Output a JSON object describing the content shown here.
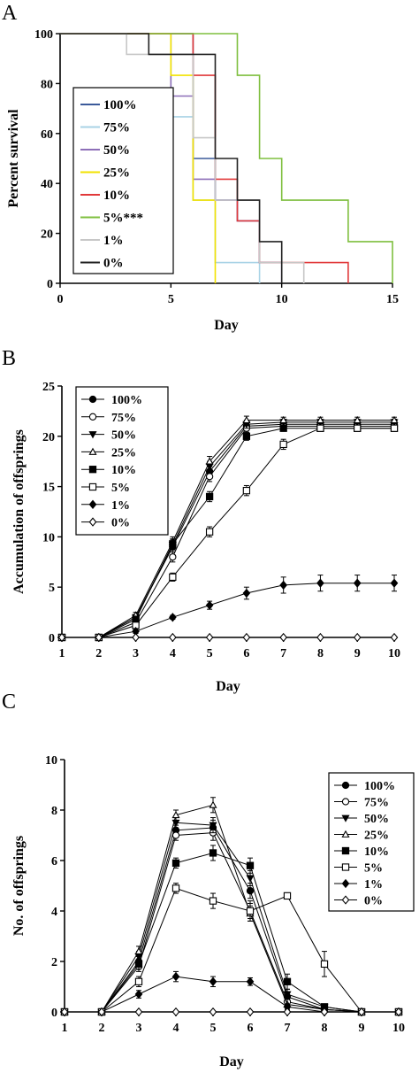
{
  "chart_data": [
    {
      "panel": "A",
      "type": "line",
      "step": true,
      "xlabel": "Day",
      "ylabel": "Percent survival",
      "xlim": [
        0,
        15
      ],
      "ylim": [
        0,
        100
      ],
      "xticks": [
        "0",
        "5",
        "10",
        "15"
      ],
      "yticks": [
        "0",
        "20",
        "40",
        "60",
        "80",
        "100"
      ],
      "legend_position": "left",
      "series": [
        {
          "name": "100%",
          "color": "#3b5a9a",
          "x": [
            0,
            6,
            6,
            7,
            7,
            8,
            8,
            9,
            9,
            10
          ],
          "y": [
            100,
            100,
            50,
            50,
            33.3,
            33.3,
            25,
            25,
            8.3,
            8.3
          ]
        },
        {
          "name": "75%",
          "color": "#a9d3e6",
          "x": [
            0,
            5,
            5,
            6,
            6,
            7,
            7,
            9,
            9
          ],
          "y": [
            100,
            100,
            66.7,
            66.7,
            33.3,
            33.3,
            8.3,
            8.3,
            0
          ]
        },
        {
          "name": "50%",
          "color": "#8d6fb8",
          "x": [
            0,
            5,
            5,
            6,
            6,
            7,
            7,
            8,
            8,
            9,
            9,
            10,
            10
          ],
          "y": [
            100,
            100,
            75,
            75,
            41.7,
            41.7,
            33.3,
            33.3,
            25,
            25,
            8.3,
            8.3,
            0
          ]
        },
        {
          "name": "25%",
          "color": "#f2e200",
          "x": [
            0,
            5,
            5,
            6,
            6,
            7,
            7
          ],
          "y": [
            100,
            100,
            83.3,
            83.3,
            33.3,
            33.3,
            0
          ]
        },
        {
          "name": "10%",
          "color": "#e1393a",
          "x": [
            0,
            6,
            6,
            7,
            7,
            8,
            8,
            9,
            9,
            13,
            13
          ],
          "y": [
            100,
            100,
            83.3,
            83.3,
            41.7,
            41.7,
            25,
            25,
            8.3,
            8.3,
            0
          ]
        },
        {
          "name": "5%***",
          "color": "#7fbf3f",
          "x": [
            0,
            8,
            8,
            9,
            9,
            10,
            10,
            13,
            13,
            15,
            15
          ],
          "y": [
            100,
            100,
            83.3,
            83.3,
            50,
            50,
            33.3,
            33.3,
            16.7,
            16.7,
            0
          ]
        },
        {
          "name": "1%",
          "color": "#c7c7c7",
          "x": [
            0,
            3,
            3,
            6,
            6,
            7,
            7,
            9,
            9,
            11,
            11
          ],
          "y": [
            100,
            100,
            91.7,
            91.7,
            58.3,
            58.3,
            33.3,
            33.3,
            8.3,
            8.3,
            0
          ]
        },
        {
          "name": "0%",
          "color": "#222222",
          "x": [
            0,
            4,
            4,
            7,
            7,
            8,
            8,
            9,
            9,
            10,
            10
          ],
          "y": [
            100,
            100,
            91.7,
            91.7,
            50,
            50,
            33.3,
            33.3,
            16.7,
            16.7,
            0
          ]
        }
      ]
    },
    {
      "panel": "B",
      "type": "line",
      "xlabel": "Day",
      "ylabel": "Accumulation of offsprings",
      "xlim": [
        1,
        10
      ],
      "ylim": [
        0,
        25
      ],
      "xticks": [
        "1",
        "2",
        "3",
        "4",
        "5",
        "6",
        "7",
        "8",
        "9",
        "10"
      ],
      "yticks": [
        "0",
        "5",
        "10",
        "15",
        "20",
        "25"
      ],
      "legend_position": "top-left",
      "categories": [
        1,
        2,
        3,
        4,
        5,
        6,
        7,
        8,
        9,
        10
      ],
      "series": [
        {
          "name": "100%",
          "marker": "circle-filled",
          "values": [
            0,
            0,
            2.0,
            9.0,
            16.5,
            21.0,
            21.2,
            21.2,
            21.2,
            21.2
          ],
          "error": [
            0,
            0,
            0.3,
            0.5,
            0.5,
            0.4,
            0.3,
            0.3,
            0.3,
            0.3
          ]
        },
        {
          "name": "75%",
          "marker": "circle-open",
          "values": [
            0,
            0,
            1.5,
            8.0,
            16.0,
            20.8,
            21.0,
            21.0,
            21.0,
            21.0
          ],
          "error": [
            0,
            0,
            0.3,
            0.5,
            0.5,
            0.4,
            0.3,
            0.3,
            0.3,
            0.3
          ]
        },
        {
          "name": "50%",
          "marker": "triangle-down-filled",
          "values": [
            0,
            0,
            2.0,
            9.2,
            17.0,
            21.2,
            21.4,
            21.4,
            21.4,
            21.4
          ],
          "error": [
            0,
            0,
            0.3,
            0.5,
            0.5,
            0.4,
            0.3,
            0.3,
            0.3,
            0.3
          ]
        },
        {
          "name": "25%",
          "marker": "triangle-up-open",
          "values": [
            0,
            0,
            2.2,
            9.5,
            17.5,
            21.6,
            21.6,
            21.6,
            21.6,
            21.6
          ],
          "error": [
            0,
            0,
            0.3,
            0.5,
            0.5,
            0.4,
            0.3,
            0.3,
            0.3,
            0.3
          ]
        },
        {
          "name": "10%",
          "marker": "square-filled",
          "values": [
            0,
            0,
            1.8,
            9.3,
            14.0,
            20.0,
            20.8,
            20.8,
            20.8,
            20.8
          ],
          "error": [
            0,
            0,
            0.3,
            0.5,
            0.5,
            0.4,
            0.3,
            0.3,
            0.3,
            0.3
          ]
        },
        {
          "name": "5%",
          "marker": "square-open",
          "values": [
            0,
            0,
            1.2,
            6.0,
            10.5,
            14.6,
            19.2,
            20.8,
            20.8,
            20.8
          ],
          "error": [
            0,
            0,
            0.3,
            0.4,
            0.5,
            0.5,
            0.5,
            0.3,
            0.3,
            0.3
          ]
        },
        {
          "name": "1%",
          "marker": "diamond-filled",
          "values": [
            0,
            0,
            0.6,
            2.0,
            3.2,
            4.4,
            5.2,
            5.4,
            5.4,
            5.4
          ],
          "error": [
            0,
            0,
            0.2,
            0.2,
            0.4,
            0.6,
            0.8,
            0.8,
            0.8,
            0.8
          ]
        },
        {
          "name": "0%",
          "marker": "diamond-open",
          "values": [
            0,
            0,
            0,
            0,
            0,
            0,
            0,
            0,
            0,
            0
          ],
          "error": [
            0,
            0,
            0,
            0,
            0,
            0,
            0,
            0,
            0,
            0
          ]
        }
      ]
    },
    {
      "panel": "C",
      "type": "line",
      "xlabel": "Day",
      "ylabel": "No. of offsprings",
      "xlim": [
        1,
        10
      ],
      "ylim": [
        0,
        10
      ],
      "xticks": [
        "1",
        "2",
        "3",
        "4",
        "5",
        "6",
        "7",
        "8",
        "9",
        "10"
      ],
      "yticks": [
        "0",
        "2",
        "4",
        "6",
        "8",
        "10"
      ],
      "legend_position": "top-right",
      "categories": [
        1,
        2,
        3,
        4,
        5,
        6,
        7,
        8,
        9,
        10
      ],
      "series": [
        {
          "name": "100%",
          "marker": "circle-filled",
          "values": [
            0,
            0,
            2.0,
            7.2,
            7.3,
            4.8,
            0.6,
            0.1,
            0,
            0
          ],
          "error": [
            0,
            0,
            0.2,
            0.2,
            0.3,
            0.3,
            0.2,
            0.1,
            0,
            0
          ]
        },
        {
          "name": "75%",
          "marker": "circle-open",
          "values": [
            0,
            0,
            1.8,
            7.0,
            7.1,
            4.0,
            0.4,
            0.1,
            0,
            0
          ],
          "error": [
            0,
            0,
            0.2,
            0.2,
            0.3,
            0.3,
            0.2,
            0.1,
            0,
            0
          ]
        },
        {
          "name": "50%",
          "marker": "triangle-down-filled",
          "values": [
            0,
            0,
            2.2,
            7.5,
            7.4,
            5.3,
            0.7,
            0.2,
            0,
            0
          ],
          "error": [
            0,
            0,
            0.2,
            0.2,
            0.3,
            0.3,
            0.2,
            0.1,
            0,
            0
          ]
        },
        {
          "name": "25%",
          "marker": "triangle-up-open",
          "values": [
            0,
            0,
            2.4,
            7.8,
            8.2,
            3.9,
            0.3,
            0.1,
            0,
            0
          ],
          "error": [
            0,
            0,
            0.2,
            0.2,
            0.3,
            0.3,
            0.2,
            0.1,
            0,
            0
          ]
        },
        {
          "name": "10%",
          "marker": "square-filled",
          "values": [
            0,
            0,
            1.9,
            5.9,
            6.3,
            5.8,
            1.2,
            0.2,
            0,
            0
          ],
          "error": [
            0,
            0,
            0.2,
            0.2,
            0.3,
            0.3,
            0.3,
            0.1,
            0,
            0
          ]
        },
        {
          "name": "5%",
          "marker": "square-open",
          "values": [
            0,
            0,
            1.2,
            4.9,
            4.4,
            4.0,
            4.6,
            1.9,
            0,
            0
          ],
          "error": [
            0,
            0,
            0.2,
            0.2,
            0.3,
            0.4,
            0.1,
            0.5,
            0,
            0
          ]
        },
        {
          "name": "1%",
          "marker": "diamond-filled",
          "values": [
            0,
            0,
            0.7,
            1.4,
            1.2,
            1.2,
            0.2,
            0,
            0,
            0
          ],
          "error": [
            0,
            0,
            0.15,
            0.2,
            0.2,
            0.15,
            0.1,
            0,
            0,
            0
          ]
        },
        {
          "name": "0%",
          "marker": "diamond-open",
          "values": [
            0,
            0,
            0,
            0,
            0,
            0,
            0,
            0,
            0,
            0
          ],
          "error": [
            0,
            0,
            0,
            0,
            0,
            0,
            0,
            0,
            0,
            0
          ]
        }
      ]
    }
  ]
}
